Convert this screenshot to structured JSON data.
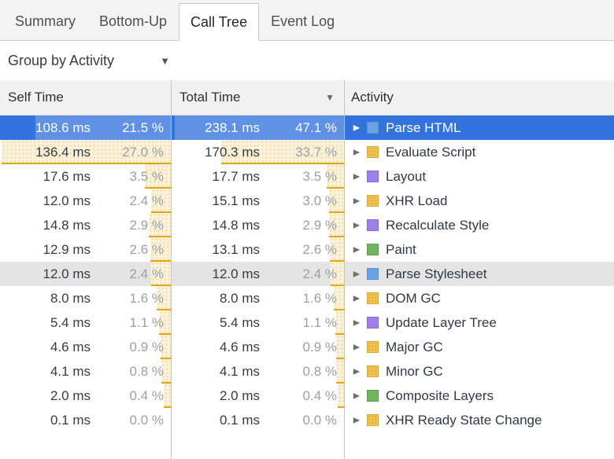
{
  "tabs": {
    "items": [
      {
        "label": "Summary",
        "selected": false
      },
      {
        "label": "Bottom-Up",
        "selected": false
      },
      {
        "label": "Call Tree",
        "selected": true
      },
      {
        "label": "Event Log",
        "selected": false
      }
    ]
  },
  "toolbar": {
    "group_by_label": "Group by Activity",
    "dropdown_icon": "▼"
  },
  "table": {
    "columns": [
      {
        "label": "Self Time",
        "sort": null
      },
      {
        "label": "Total Time",
        "sort": "desc",
        "sort_icon": "▼"
      },
      {
        "label": "Activity",
        "sort": null
      }
    ],
    "max_self_pct": 27.0,
    "max_total_pct": 47.1,
    "rows": [
      {
        "self_ms": "108.6 ms",
        "self_pct": "21.5 %",
        "total_ms": "238.1 ms",
        "total_pct": "47.1 %",
        "activity": "Parse HTML",
        "category": "loading",
        "state": "selected",
        "self_bar": 172,
        "total_bar": 215
      },
      {
        "self_ms": "136.4 ms",
        "self_pct": "27.0 %",
        "total_ms": "170.3 ms",
        "total_pct": "33.7 %",
        "activity": "Evaluate Script",
        "category": "scripting",
        "state": "",
        "self_bar": 215,
        "total_bar": 156
      },
      {
        "self_ms": "17.6 ms",
        "self_pct": "3.5 %",
        "total_ms": "17.7 ms",
        "total_pct": "3.5 %",
        "activity": "Layout",
        "category": "rendering",
        "state": "",
        "self_bar": 33,
        "total_bar": 22
      },
      {
        "self_ms": "12.0 ms",
        "self_pct": "2.4 %",
        "total_ms": "15.1 ms",
        "total_pct": "3.0 %",
        "activity": "XHR Load",
        "category": "scripting",
        "state": "",
        "self_bar": 25,
        "total_bar": 19
      },
      {
        "self_ms": "14.8 ms",
        "self_pct": "2.9 %",
        "total_ms": "14.8 ms",
        "total_pct": "2.9 %",
        "activity": "Recalculate Style",
        "category": "rendering",
        "state": "",
        "self_bar": 28,
        "total_bar": 19
      },
      {
        "self_ms": "12.9 ms",
        "self_pct": "2.6 %",
        "total_ms": "13.1 ms",
        "total_pct": "2.6 %",
        "activity": "Paint",
        "category": "painting",
        "state": "",
        "self_bar": 26,
        "total_bar": 18
      },
      {
        "self_ms": "12.0 ms",
        "self_pct": "2.4 %",
        "total_ms": "12.0 ms",
        "total_pct": "2.4 %",
        "activity": "Parse Stylesheet",
        "category": "loading",
        "state": "hover",
        "self_bar": 25,
        "total_bar": 17
      },
      {
        "self_ms": "8.0 ms",
        "self_pct": "1.6 %",
        "total_ms": "8.0 ms",
        "total_pct": "1.6 %",
        "activity": "DOM GC",
        "category": "scripting",
        "state": "",
        "self_bar": 18,
        "total_bar": 13
      },
      {
        "self_ms": "5.4 ms",
        "self_pct": "1.1 %",
        "total_ms": "5.4 ms",
        "total_pct": "1.1 %",
        "activity": "Update Layer Tree",
        "category": "rendering",
        "state": "",
        "self_bar": 15,
        "total_bar": 11
      },
      {
        "self_ms": "4.6 ms",
        "self_pct": "0.9 %",
        "total_ms": "4.6 ms",
        "total_pct": "0.9 %",
        "activity": "Major GC",
        "category": "scripting",
        "state": "",
        "self_bar": 13,
        "total_bar": 10
      },
      {
        "self_ms": "4.1 ms",
        "self_pct": "0.8 %",
        "total_ms": "4.1 ms",
        "total_pct": "0.8 %",
        "activity": "Minor GC",
        "category": "scripting",
        "state": "",
        "self_bar": 12,
        "total_bar": 10
      },
      {
        "self_ms": "2.0 ms",
        "self_pct": "0.4 %",
        "total_ms": "2.0 ms",
        "total_pct": "0.4 %",
        "activity": "Composite Layers",
        "category": "painting",
        "state": "",
        "self_bar": 9,
        "total_bar": 8
      },
      {
        "self_ms": "0.1 ms",
        "self_pct": "0.0 %",
        "total_ms": "0.1 ms",
        "total_pct": "0.0 %",
        "activity": "XHR Ready State Change",
        "category": "scripting",
        "state": "",
        "self_bar": 0,
        "total_bar": 0
      }
    ]
  },
  "icons": {
    "disclosure_collapsed": "▶"
  },
  "colors": {
    "selection_blue": "#3373de",
    "hover_gray": "#e4e4e4",
    "bar_fill": "#fbf2da",
    "bar_underline": "#e2a60a",
    "category": {
      "loading": {
        "fill": "#6ba2e4",
        "border": "#5b8fd6"
      },
      "scripting": {
        "fill": "#f0c350",
        "border": "#d9a83c"
      },
      "rendering": {
        "fill": "#9d80e8",
        "border": "#8a68da"
      },
      "painting": {
        "fill": "#71b35f",
        "border": "#5f9c4f"
      }
    }
  }
}
